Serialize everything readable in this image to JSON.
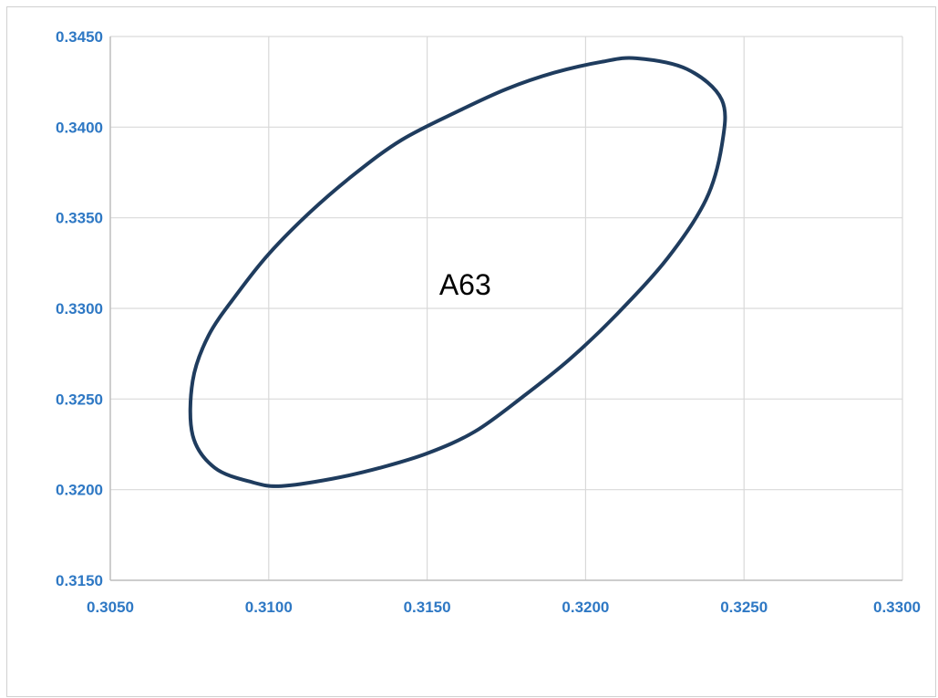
{
  "chart_data": {
    "type": "line",
    "title": "",
    "xlabel": "",
    "ylabel": "",
    "xlim": [
      0.305,
      0.33
    ],
    "ylim": [
      0.315,
      0.345
    ],
    "x_ticks": [
      "0.3050",
      "0.3100",
      "0.3150",
      "0.3200",
      "0.3250",
      "0.3300"
    ],
    "y_ticks": [
      "0.3150",
      "0.3200",
      "0.3250",
      "0.3300",
      "0.3350",
      "0.3400",
      "0.3450"
    ],
    "grid": true,
    "legend": "none",
    "annotations": [
      {
        "text": "A63",
        "x": 0.3162,
        "y": 0.3313
      }
    ],
    "series": [
      {
        "x": [
          0.316,
          0.3175,
          0.319,
          0.3205,
          0.3216,
          0.3232,
          0.3243,
          0.3243,
          0.3238,
          0.3226,
          0.321,
          0.3195,
          0.318,
          0.3165,
          0.315,
          0.3135,
          0.312,
          0.3104,
          0.3095,
          0.3083,
          0.3076,
          0.3076,
          0.3081,
          0.309,
          0.31,
          0.3113,
          0.3127,
          0.3142,
          0.316
        ],
        "y": [
          0.3409,
          0.3421,
          0.343,
          0.3436,
          0.3438,
          0.3432,
          0.3415,
          0.339,
          0.336,
          0.3328,
          0.3297,
          0.3272,
          0.3251,
          0.3232,
          0.322,
          0.3212,
          0.3206,
          0.3202,
          0.3204,
          0.3212,
          0.323,
          0.326,
          0.3285,
          0.3308,
          0.333,
          0.3353,
          0.3374,
          0.3393,
          0.3409
        ],
        "color": "#1f3c5e"
      }
    ],
    "colors": {
      "tick_label": "#2e78c4",
      "grid": "#d9d9d9",
      "axis": "#bfbfbf",
      "frame": "#d0d0d0"
    }
  }
}
